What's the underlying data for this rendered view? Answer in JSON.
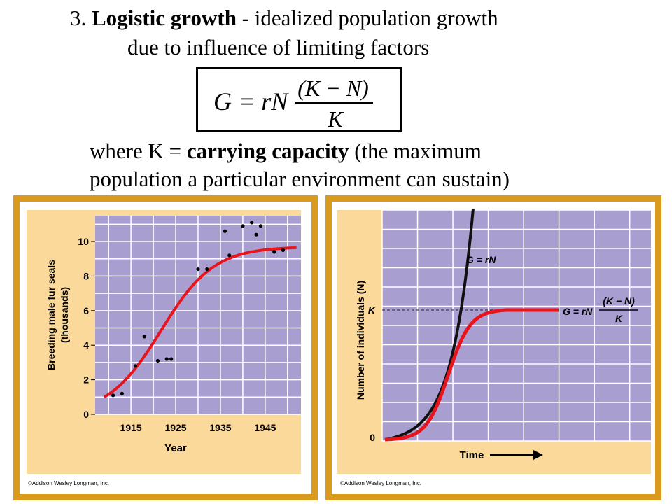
{
  "heading": {
    "number": "3.",
    "term": "Logistic growth",
    "definition_part1": " - idealized population growth",
    "definition_part2": "due to influence of limiting factors"
  },
  "formula": {
    "lhs": "G = rN",
    "numerator": "(K − N)",
    "denominator": "K"
  },
  "explanation": {
    "prefix": "where K = ",
    "term": "carrying capacity",
    "rest_line1": " (the maximum",
    "line2": "population a particular environment can sustain)"
  },
  "colors": {
    "panel_border": "#d99a1e",
    "panel_bg": "#fbd99a",
    "plot_bg": "#a99ed0",
    "grid": "#ffffff",
    "logistic_curve": "#e8141c",
    "exponential_curve": "#111111"
  },
  "chart_data": [
    {
      "type": "scatter",
      "title": "",
      "xlabel": "Year",
      "ylabel": "Breeding male fur seals (thousands)",
      "xlim": [
        1907,
        1953
      ],
      "ylim": [
        0,
        11.5
      ],
      "xticks": [
        1915,
        1925,
        1935,
        1945
      ],
      "yticks": [
        0,
        2,
        4,
        6,
        8,
        10
      ],
      "grid": true,
      "series": [
        {
          "kind": "points",
          "x": [
            1911,
            1913,
            1916,
            1918,
            1921,
            1923,
            1924,
            1930,
            1932,
            1936,
            1937,
            1940,
            1942,
            1943,
            1944,
            1947,
            1949
          ],
          "y": [
            1.1,
            1.2,
            2.8,
            4.5,
            3.1,
            3.2,
            3.2,
            8.4,
            8.4,
            10.6,
            9.2,
            10.9,
            11.1,
            10.4,
            10.9,
            9.4,
            9.5
          ]
        },
        {
          "kind": "curve",
          "model": "logistic",
          "K": 9.7,
          "N0": 1.0,
          "r": 0.17,
          "x_start": 1909,
          "x_end": 1952
        }
      ],
      "credit": "©Addison Wesley Longman, Inc."
    },
    {
      "type": "line",
      "title": "",
      "xlabel": "Time",
      "ylabel": "Number of individuals (N)",
      "ytick_labels": [
        "0",
        "K"
      ],
      "grid": true,
      "series": [
        {
          "label": "G = rN",
          "model": "exponential"
        },
        {
          "label_lhs": "G = rN",
          "label_numerator": "(K − N)",
          "label_denominator": "K",
          "model": "logistic"
        }
      ],
      "credit": "©Addison Wesley Longman, Inc."
    }
  ]
}
